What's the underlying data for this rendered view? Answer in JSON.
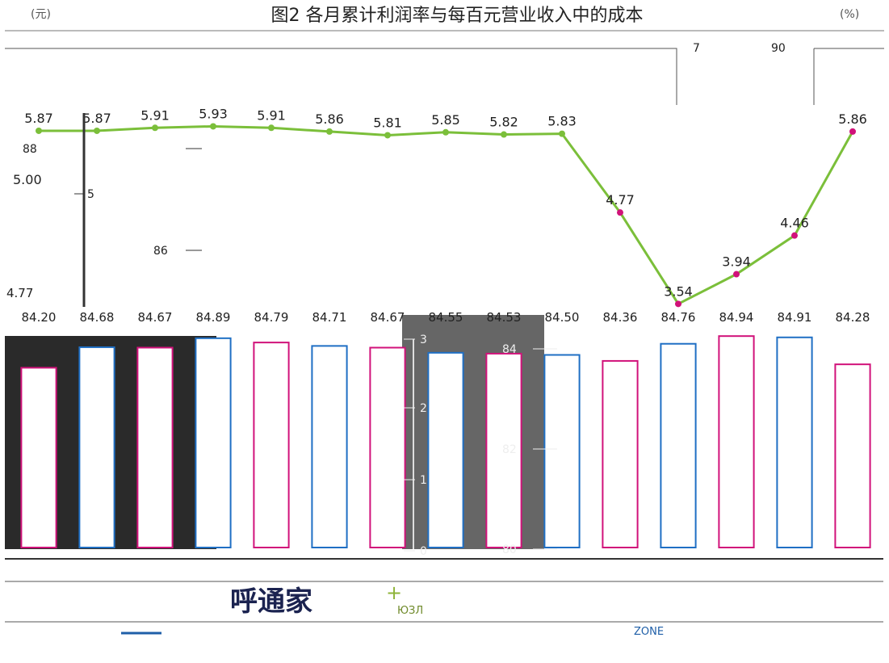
{
  "chart_data": {
    "type": "bar",
    "title": "图2 各月累计利润率与每百元营业收入中的成本",
    "left_unit": "(元)",
    "right_unit": "(%)",
    "legend_fragments": [
      "7",
      "90"
    ],
    "left_axis": {
      "ylim": [
        0,
        8
      ],
      "ticks": [
        "0",
        "1",
        "2",
        "3",
        "5"
      ]
    },
    "right_axis": {
      "ylim": [
        80,
        90
      ],
      "ticks": [
        "80",
        "82",
        "84",
        "86",
        "88"
      ]
    },
    "series": [
      {
        "name": "",
        "chart_type": "bar",
        "axis": "right",
        "values": [
          84.2,
          84.68,
          84.67,
          84.89,
          84.79,
          84.71,
          84.67,
          84.55,
          84.53,
          84.5,
          84.36,
          84.76,
          84.94,
          84.91,
          84.28
        ],
        "labels": [
          "84.20",
          "84.68",
          "84.67",
          "84.89",
          "84.79",
          "84.71",
          "84.67",
          "84.55",
          "84.53",
          "84.50",
          "84.36",
          "84.76",
          "84.94",
          "84.91",
          "84.28"
        ]
      },
      {
        "name": "",
        "chart_type": "line",
        "axis": "left",
        "values": [
          5.87,
          5.87,
          5.91,
          5.93,
          5.91,
          5.86,
          5.81,
          5.85,
          5.82,
          5.83,
          4.77,
          3.54,
          3.94,
          4.46,
          5.86
        ],
        "labels": [
          "5.87",
          "5.87",
          "5.91",
          "5.93",
          "5.91",
          "5.86",
          "5.81",
          "5.85",
          "5.82",
          "5.83",
          "4.77",
          "3.54",
          "3.94",
          "4.46",
          "5.86"
        ]
      }
    ],
    "extra_labels": [
      "5.00",
      "4.77"
    ],
    "grid": false,
    "source_strip": {
      "logo_text": "呼通家",
      "logo_subtext": "ЮЗЛ",
      "website_text": "ZONE"
    }
  }
}
